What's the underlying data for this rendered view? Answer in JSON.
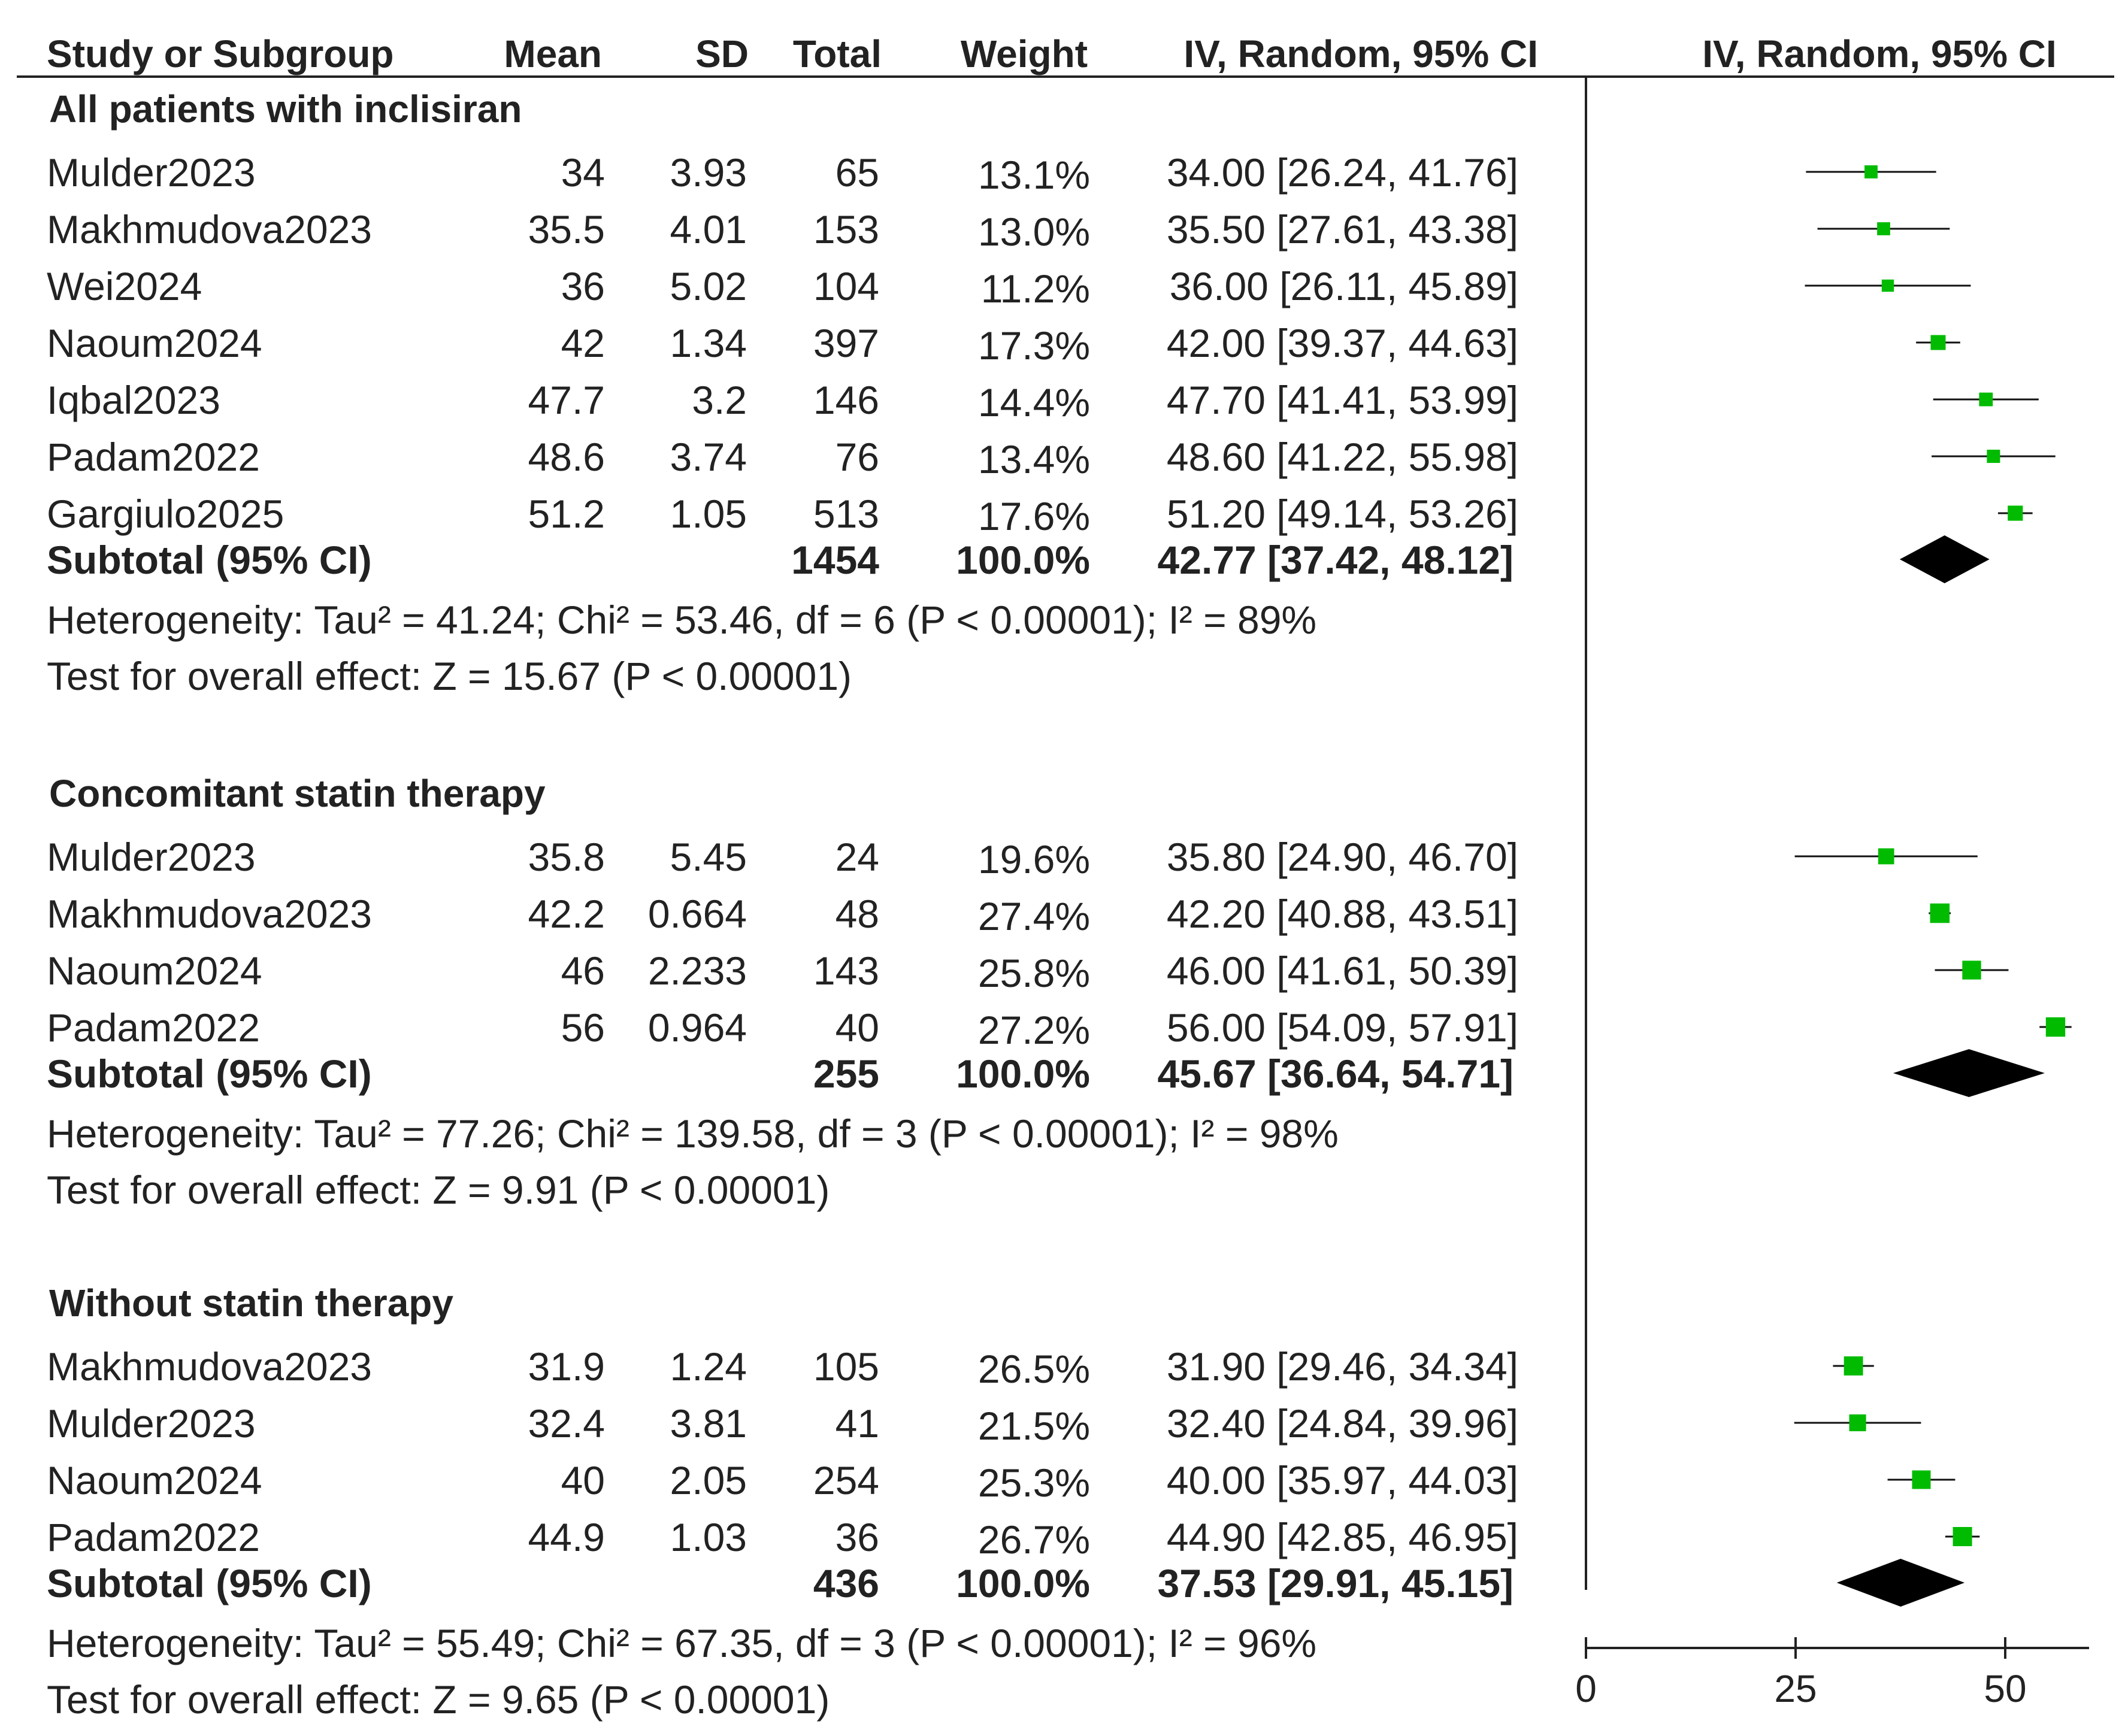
{
  "chart_data": {
    "type": "forest",
    "columns": [
      "Study or Subgroup",
      "Mean",
      "SD",
      "Total",
      "Weight",
      "IV, Random, 95% CI",
      "IV, Random, 95% CI"
    ],
    "xlim": [
      0,
      60
    ],
    "x_ticks": [
      "0",
      "25",
      "50"
    ],
    "x_tick_values": [
      0,
      25,
      50
    ],
    "marker_color": "#00bb00",
    "diamond_color": "#000000",
    "subgroups": [
      {
        "name": "All patients with inclisiran",
        "studies": [
          {
            "study": "Mulder2023",
            "mean": "34",
            "sd": "3.93",
            "total": "65",
            "weight": "13.1%",
            "ci_text": "34.00 [26.24, 41.76]",
            "est": 34.0,
            "lo": 26.24,
            "hi": 41.76,
            "w": 13.1
          },
          {
            "study": "Makhmudova2023",
            "mean": "35.5",
            "sd": "4.01",
            "total": "153",
            "weight": "13.0%",
            "ci_text": "35.50 [27.61, 43.38]",
            "est": 35.5,
            "lo": 27.61,
            "hi": 43.38,
            "w": 13.0
          },
          {
            "study": "Wei2024",
            "mean": "36",
            "sd": "5.02",
            "total": "104",
            "weight": "11.2%",
            "ci_text": "36.00 [26.11, 45.89]",
            "est": 36.0,
            "lo": 26.11,
            "hi": 45.89,
            "w": 11.2
          },
          {
            "study": "Naoum2024",
            "mean": "42",
            "sd": "1.34",
            "total": "397",
            "weight": "17.3%",
            "ci_text": "42.00 [39.37, 44.63]",
            "est": 42.0,
            "lo": 39.37,
            "hi": 44.63,
            "w": 17.3
          },
          {
            "study": "Iqbal2023",
            "mean": "47.7",
            "sd": "3.2",
            "total": "146",
            "weight": "14.4%",
            "ci_text": "47.70 [41.41, 53.99]",
            "est": 47.7,
            "lo": 41.41,
            "hi": 53.99,
            "w": 14.4
          },
          {
            "study": "Padam2022",
            "mean": "48.6",
            "sd": "3.74",
            "total": "76",
            "weight": "13.4%",
            "ci_text": "48.60 [41.22, 55.98]",
            "est": 48.6,
            "lo": 41.22,
            "hi": 55.98,
            "w": 13.4
          },
          {
            "study": "Gargiulo2025",
            "mean": "51.2",
            "sd": "1.05",
            "total": "513",
            "weight": "17.6%",
            "ci_text": "51.20 [49.14, 53.26]",
            "est": 51.2,
            "lo": 49.14,
            "hi": 53.26,
            "w": 17.6
          }
        ],
        "subtotal": {
          "label": "Subtotal (95% CI)",
          "total": "1454",
          "weight": "100.0%",
          "ci_text": "42.77 [37.42, 48.12]",
          "est": 42.77,
          "lo": 37.42,
          "hi": 48.12
        },
        "heterogeneity": "Heterogeneity: Tau² = 41.24; Chi² = 53.46, df = 6 (P < 0.00001); I² = 89%",
        "overall": "Test for overall effect: Z = 15.67 (P < 0.00001)"
      },
      {
        "name": "Concomitant statin therapy",
        "studies": [
          {
            "study": "Mulder2023",
            "mean": "35.8",
            "sd": "5.45",
            "total": "24",
            "weight": "19.6%",
            "ci_text": "35.80 [24.90, 46.70]",
            "est": 35.8,
            "lo": 24.9,
            "hi": 46.7,
            "w": 19.6
          },
          {
            "study": "Makhmudova2023",
            "mean": "42.2",
            "sd": "0.664",
            "total": "48",
            "weight": "27.4%",
            "ci_text": "42.20 [40.88, 43.51]",
            "est": 42.2,
            "lo": 40.88,
            "hi": 43.51,
            "w": 27.4
          },
          {
            "study": "Naoum2024",
            "mean": "46",
            "sd": "2.233",
            "total": "143",
            "weight": "25.8%",
            "ci_text": "46.00 [41.61, 50.39]",
            "est": 46.0,
            "lo": 41.61,
            "hi": 50.39,
            "w": 25.8
          },
          {
            "study": "Padam2022",
            "mean": "56",
            "sd": "0.964",
            "total": "40",
            "weight": "27.2%",
            "ci_text": "56.00 [54.09, 57.91]",
            "est": 56.0,
            "lo": 54.09,
            "hi": 57.91,
            "w": 27.2
          }
        ],
        "subtotal": {
          "label": "Subtotal (95% CI)",
          "total": "255",
          "weight": "100.0%",
          "ci_text": "45.67 [36.64, 54.71]",
          "est": 45.67,
          "lo": 36.64,
          "hi": 54.71
        },
        "heterogeneity": "Heterogeneity: Tau² = 77.26; Chi² = 139.58, df = 3 (P < 0.00001); I² = 98%",
        "overall": "Test for overall effect: Z = 9.91 (P < 0.00001)"
      },
      {
        "name": "Without statin therapy",
        "studies": [
          {
            "study": "Makhmudova2023",
            "mean": "31.9",
            "sd": "1.24",
            "total": "105",
            "weight": "26.5%",
            "ci_text": "31.90 [29.46, 34.34]",
            "est": 31.9,
            "lo": 29.46,
            "hi": 34.34,
            "w": 26.5
          },
          {
            "study": "Mulder2023",
            "mean": "32.4",
            "sd": "3.81",
            "total": "41",
            "weight": "21.5%",
            "ci_text": "32.40 [24.84, 39.96]",
            "est": 32.4,
            "lo": 24.84,
            "hi": 39.96,
            "w": 21.5
          },
          {
            "study": "Naoum2024",
            "mean": "40",
            "sd": "2.05",
            "total": "254",
            "weight": "25.3%",
            "ci_text": "40.00 [35.97, 44.03]",
            "est": 40.0,
            "lo": 35.97,
            "hi": 44.03,
            "w": 25.3
          },
          {
            "study": "Padam2022",
            "mean": "44.9",
            "sd": "1.03",
            "total": "36",
            "weight": "26.7%",
            "ci_text": "44.90 [42.85, 46.95]",
            "est": 44.9,
            "lo": 42.85,
            "hi": 46.95,
            "w": 26.7
          }
        ],
        "subtotal": {
          "label": "Subtotal (95% CI)",
          "total": "436",
          "weight": "100.0%",
          "ci_text": "37.53 [29.91, 45.15]",
          "est": 37.53,
          "lo": 29.91,
          "hi": 45.15
        },
        "heterogeneity": "Heterogeneity: Tau² = 55.49; Chi² = 67.35, df = 3 (P < 0.00001); I² = 96%",
        "overall": "Test for overall effect: Z = 9.65 (P < 0.00001)"
      }
    ]
  }
}
